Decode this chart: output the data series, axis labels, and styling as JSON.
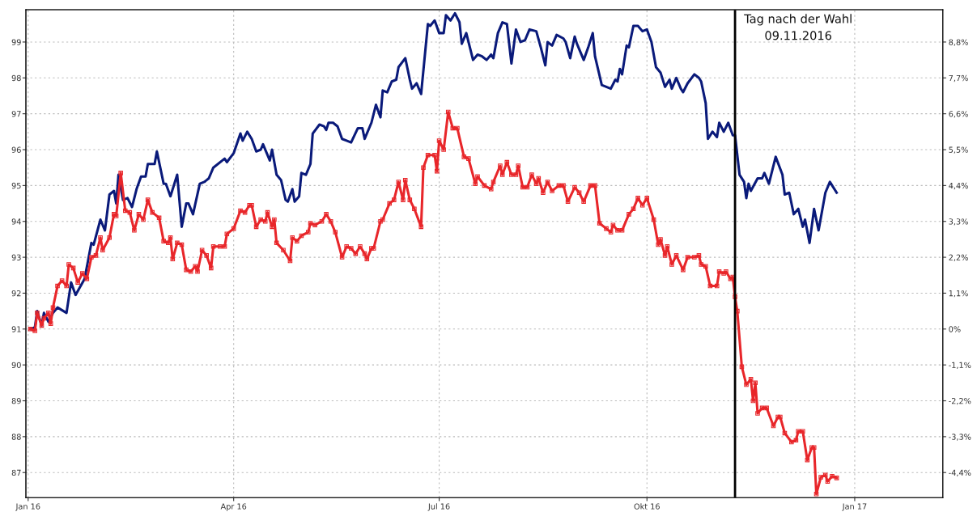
{
  "chart_data": {
    "type": "line",
    "xlim": [
      "2015-12-31",
      "2017-02-09"
    ],
    "xticks": [
      {
        "value": "2016-01-01",
        "label": "Jan 16"
      },
      {
        "value": "2016-04-01",
        "label": "Apr 16"
      },
      {
        "value": "2016-07-01",
        "label": "Jul 16"
      },
      {
        "value": "2016-10-01",
        "label": "Okt 16"
      },
      {
        "value": "2017-01-01",
        "label": "Jan 17"
      }
    ],
    "ylim": [
      86.3,
      99.9
    ],
    "yticks": [
      87,
      88,
      89,
      90,
      91,
      92,
      93,
      94,
      95,
      96,
      97,
      98,
      99
    ],
    "y2lim": [
      -5.17,
      9.79
    ],
    "y2ticks": [
      {
        "value": -4.4,
        "label": "-4,4%"
      },
      {
        "value": -3.3,
        "label": "-3,3%"
      },
      {
        "value": -2.2,
        "label": "-2,2%"
      },
      {
        "value": -1.1,
        "label": "-1,1%"
      },
      {
        "value": 0,
        "label": "0%"
      },
      {
        "value": 1.1,
        "label": "1,1%"
      },
      {
        "value": 2.2,
        "label": "2,2%"
      },
      {
        "value": 3.3,
        "label": "3,3%"
      },
      {
        "value": 4.4,
        "label": "4,4%"
      },
      {
        "value": 5.5,
        "label": "5,5%"
      },
      {
        "value": 6.6,
        "label": "6,6%"
      },
      {
        "value": 7.7,
        "label": "7,7%"
      },
      {
        "value": 8.8,
        "label": "8,8%"
      }
    ],
    "grid": true,
    "line_style": "solid",
    "ref_lines": [
      {
        "axis": "x",
        "value": "2016-11-09",
        "label": "Tag nach der Wahl\n09.11.2016",
        "color": "#000000"
      }
    ],
    "series": [
      {
        "color": "#0a1a7a",
        "marker": "none",
        "x": [
          "2016-01-02",
          "2016-01-04",
          "2016-01-05",
          "2016-01-07",
          "2016-01-08",
          "2016-01-10",
          "2016-01-12",
          "2016-01-14",
          "2016-01-18",
          "2016-01-20",
          "2016-01-22",
          "2016-01-26",
          "2016-01-29",
          "2016-01-30",
          "2016-02-02",
          "2016-02-04",
          "2016-02-06",
          "2016-02-08",
          "2016-02-09",
          "2016-02-10",
          "2016-02-12",
          "2016-02-14",
          "2016-02-16",
          "2016-02-18",
          "2016-02-20",
          "2016-02-22",
          "2016-02-23",
          "2016-02-26",
          "2016-02-27",
          "2016-03-01",
          "2016-03-02",
          "2016-03-04",
          "2016-03-07",
          "2016-03-09",
          "2016-03-11",
          "2016-03-12",
          "2016-03-14",
          "2016-03-17",
          "2016-03-19",
          "2016-03-21",
          "2016-03-23",
          "2016-03-28",
          "2016-03-29",
          "2016-04-01",
          "2016-04-04",
          "2016-04-05",
          "2016-04-07",
          "2016-04-09",
          "2016-04-11",
          "2016-04-13",
          "2016-04-14",
          "2016-04-17",
          "2016-04-18",
          "2016-04-20",
          "2016-04-22",
          "2016-04-24",
          "2016-04-25",
          "2016-04-27",
          "2016-04-28",
          "2016-04-30",
          "2016-05-01",
          "2016-05-03",
          "2016-05-05",
          "2016-05-06",
          "2016-05-09",
          "2016-05-11",
          "2016-05-12",
          "2016-05-13",
          "2016-05-15",
          "2016-05-17",
          "2016-05-19",
          "2016-05-21",
          "2016-05-23",
          "2016-05-26",
          "2016-05-28",
          "2016-05-29",
          "2016-06-01",
          "2016-06-03",
          "2016-06-05",
          "2016-06-06",
          "2016-06-08",
          "2016-06-10",
          "2016-06-12",
          "2016-06-13",
          "2016-06-16",
          "2016-06-18",
          "2016-06-19",
          "2016-06-21",
          "2016-06-23",
          "2016-06-26",
          "2016-06-27",
          "2016-06-29",
          "2016-07-01",
          "2016-07-03",
          "2016-07-04",
          "2016-07-06",
          "2016-07-08",
          "2016-07-10",
          "2016-07-11",
          "2016-07-13",
          "2016-07-16",
          "2016-07-18",
          "2016-07-20",
          "2016-07-22",
          "2016-07-24",
          "2016-07-25",
          "2016-07-27",
          "2016-07-29",
          "2016-07-31",
          "2016-08-02",
          "2016-08-04",
          "2016-08-06",
          "2016-08-08",
          "2016-08-10",
          "2016-08-13",
          "2016-08-15",
          "2016-08-17",
          "2016-08-18",
          "2016-08-20",
          "2016-08-22",
          "2016-08-25",
          "2016-08-26",
          "2016-08-28",
          "2016-08-30",
          "2016-08-31",
          "2016-09-03",
          "2016-09-05",
          "2016-09-07",
          "2016-09-08",
          "2016-09-11",
          "2016-09-13",
          "2016-09-15",
          "2016-09-17",
          "2016-09-18",
          "2016-09-19",
          "2016-09-20",
          "2016-09-22",
          "2016-09-23",
          "2016-09-25",
          "2016-09-27",
          "2016-09-29",
          "2016-10-01",
          "2016-10-03",
          "2016-10-05",
          "2016-10-07",
          "2016-10-09",
          "2016-10-11",
          "2016-10-12",
          "2016-10-14",
          "2016-10-16",
          "2016-10-17",
          "2016-10-19",
          "2016-10-22",
          "2016-10-24",
          "2016-10-25",
          "2016-10-27",
          "2016-10-28",
          "2016-10-30",
          "2016-11-01",
          "2016-11-02",
          "2016-11-04",
          "2016-11-06",
          "2016-11-08",
          "2016-11-09",
          "2016-11-11",
          "2016-11-13",
          "2016-11-14",
          "2016-11-15",
          "2016-11-16",
          "2016-11-19",
          "2016-11-21",
          "2016-11-22",
          "2016-11-24",
          "2016-11-27",
          "2016-11-30",
          "2016-12-01",
          "2016-12-03",
          "2016-12-05",
          "2016-12-07",
          "2016-12-09",
          "2016-12-10",
          "2016-12-12",
          "2016-12-14",
          "2016-12-16",
          "2016-12-19",
          "2016-12-21",
          "2016-12-24"
        ],
        "values": [
          91.0,
          91.05,
          91.5,
          91.1,
          91.45,
          91.2,
          91.45,
          91.6,
          91.45,
          92.3,
          91.95,
          92.4,
          93.4,
          93.35,
          94.05,
          93.75,
          94.75,
          94.85,
          94.5,
          95.3,
          94.6,
          94.65,
          94.4,
          94.9,
          95.25,
          95.25,
          95.6,
          95.6,
          95.95,
          95.05,
          95.05,
          94.7,
          95.3,
          93.85,
          94.5,
          94.5,
          94.2,
          95.05,
          95.1,
          95.2,
          95.5,
          95.75,
          95.65,
          95.9,
          96.45,
          96.25,
          96.5,
          96.3,
          95.95,
          96.0,
          96.15,
          95.7,
          96.0,
          95.3,
          95.15,
          94.6,
          94.55,
          94.9,
          94.55,
          94.7,
          95.35,
          95.3,
          95.6,
          96.45,
          96.7,
          96.65,
          96.55,
          96.75,
          96.75,
          96.65,
          96.3,
          96.25,
          96.2,
          96.6,
          96.6,
          96.3,
          96.75,
          97.25,
          96.9,
          97.65,
          97.6,
          97.9,
          97.95,
          98.3,
          98.55,
          97.95,
          97.7,
          97.85,
          97.55,
          99.5,
          99.45,
          99.6,
          99.25,
          99.25,
          99.75,
          99.6,
          99.8,
          99.55,
          98.95,
          99.25,
          98.5,
          98.65,
          98.6,
          98.5,
          98.65,
          98.55,
          99.25,
          99.55,
          99.5,
          98.4,
          99.35,
          99.0,
          99.05,
          99.35,
          99.3,
          98.85,
          98.35,
          99.0,
          98.9,
          99.2,
          99.1,
          99.0,
          98.55,
          99.15,
          98.95,
          98.5,
          98.85,
          99.25,
          98.6,
          97.8,
          97.75,
          97.7,
          97.95,
          97.9,
          98.25,
          98.1,
          98.9,
          98.85,
          99.45,
          99.45,
          99.3,
          99.35,
          99.0,
          98.3,
          98.15,
          97.75,
          97.95,
          97.7,
          98.0,
          97.7,
          97.6,
          97.85,
          98.1,
          98.0,
          97.9,
          97.3,
          96.3,
          96.5,
          96.35,
          96.75,
          96.5,
          96.75,
          96.4,
          96.4,
          95.3,
          95.1,
          94.65,
          95.05,
          94.85,
          95.2,
          95.2,
          95.35,
          95.05,
          95.8,
          95.3,
          94.75,
          94.8,
          94.2,
          94.35,
          93.85,
          94.05,
          93.4,
          94.35,
          93.75,
          94.8,
          95.1,
          94.8
        ]
      },
      {
        "color": "#e8262a",
        "marker": "square",
        "x": [
          "2016-01-02",
          "2016-01-04",
          "2016-01-05",
          "2016-01-07",
          "2016-01-08",
          "2016-01-10",
          "2016-01-11",
          "2016-01-12",
          "2016-01-14",
          "2016-01-16",
          "2016-01-18",
          "2016-01-19",
          "2016-01-21",
          "2016-01-23",
          "2016-01-25",
          "2016-01-27",
          "2016-01-29",
          "2016-01-31",
          "2016-02-02",
          "2016-02-03",
          "2016-02-06",
          "2016-02-08",
          "2016-02-09",
          "2016-02-11",
          "2016-02-13",
          "2016-02-15",
          "2016-02-17",
          "2016-02-19",
          "2016-02-21",
          "2016-02-23",
          "2016-02-25",
          "2016-02-28",
          "2016-03-01",
          "2016-03-03",
          "2016-03-04",
          "2016-03-05",
          "2016-03-07",
          "2016-03-09",
          "2016-03-11",
          "2016-03-13",
          "2016-03-15",
          "2016-03-16",
          "2016-03-18",
          "2016-03-20",
          "2016-03-22",
          "2016-03-23",
          "2016-03-26",
          "2016-03-28",
          "2016-03-29",
          "2016-04-01",
          "2016-04-04",
          "2016-04-06",
          "2016-04-08",
          "2016-04-09",
          "2016-04-11",
          "2016-04-13",
          "2016-04-15",
          "2016-04-16",
          "2016-04-18",
          "2016-04-19",
          "2016-04-20",
          "2016-04-23",
          "2016-04-26",
          "2016-04-27",
          "2016-04-29",
          "2016-05-01",
          "2016-05-04",
          "2016-05-05",
          "2016-05-07",
          "2016-05-10",
          "2016-05-12",
          "2016-05-14",
          "2016-05-16",
          "2016-05-19",
          "2016-05-21",
          "2016-05-23",
          "2016-05-25",
          "2016-05-27",
          "2016-05-29",
          "2016-05-30",
          "2016-06-01",
          "2016-06-02",
          "2016-06-05",
          "2016-06-06",
          "2016-06-09",
          "2016-06-11",
          "2016-06-13",
          "2016-06-15",
          "2016-06-16",
          "2016-06-18",
          "2016-06-20",
          "2016-06-23",
          "2016-06-24",
          "2016-06-26",
          "2016-06-29",
          "2016-06-30",
          "2016-07-01",
          "2016-07-03",
          "2016-07-05",
          "2016-07-07",
          "2016-07-09",
          "2016-07-12",
          "2016-07-14",
          "2016-07-17",
          "2016-07-18",
          "2016-07-21",
          "2016-07-24",
          "2016-07-25",
          "2016-07-28",
          "2016-07-29",
          "2016-07-31",
          "2016-08-02",
          "2016-08-04",
          "2016-08-05",
          "2016-08-07",
          "2016-08-09",
          "2016-08-11",
          "2016-08-13",
          "2016-08-14",
          "2016-08-16",
          "2016-08-18",
          "2016-08-20",
          "2016-08-23",
          "2016-08-25",
          "2016-08-27",
          "2016-08-30",
          "2016-09-01",
          "2016-09-03",
          "2016-09-06",
          "2016-09-08",
          "2016-09-10",
          "2016-09-13",
          "2016-09-15",
          "2016-09-16",
          "2016-09-18",
          "2016-09-20",
          "2016-09-23",
          "2016-09-25",
          "2016-09-27",
          "2016-09-29",
          "2016-10-01",
          "2016-10-04",
          "2016-10-06",
          "2016-10-07",
          "2016-10-09",
          "2016-10-10",
          "2016-10-12",
          "2016-10-14",
          "2016-10-17",
          "2016-10-19",
          "2016-10-22",
          "2016-10-24",
          "2016-10-25",
          "2016-10-27",
          "2016-10-29",
          "2016-11-01",
          "2016-11-02",
          "2016-11-04",
          "2016-11-05",
          "2016-11-07",
          "2016-11-08",
          "2016-11-09",
          "2016-11-10",
          "2016-11-12",
          "2016-11-14",
          "2016-11-16",
          "2016-11-17",
          "2016-11-18",
          "2016-11-19",
          "2016-11-21",
          "2016-11-23",
          "2016-11-26",
          "2016-11-28",
          "2016-11-29",
          "2016-12-01",
          "2016-12-04",
          "2016-12-06",
          "2016-12-07",
          "2016-12-09",
          "2016-12-11",
          "2016-12-13",
          "2016-12-14",
          "2016-12-15",
          "2016-12-17",
          "2016-12-19",
          "2016-12-20",
          "2016-12-22",
          "2016-12-24"
        ],
        "values": [
          91.0,
          90.95,
          91.45,
          91.1,
          91.3,
          91.45,
          91.15,
          91.6,
          92.2,
          92.35,
          92.2,
          92.8,
          92.7,
          92.3,
          92.55,
          92.4,
          93.0,
          93.05,
          93.55,
          93.2,
          93.55,
          94.2,
          94.15,
          95.35,
          94.3,
          94.25,
          93.75,
          94.2,
          94.05,
          94.6,
          94.25,
          94.1,
          93.45,
          93.4,
          93.55,
          92.95,
          93.4,
          93.35,
          92.65,
          92.6,
          92.75,
          92.6,
          93.2,
          93.05,
          92.7,
          93.3,
          93.3,
          93.3,
          93.65,
          93.8,
          94.3,
          94.25,
          94.45,
          94.45,
          93.85,
          94.05,
          94.0,
          94.25,
          93.85,
          94.05,
          93.4,
          93.2,
          92.9,
          93.55,
          93.45,
          93.6,
          93.7,
          93.95,
          93.9,
          94.0,
          94.2,
          94.0,
          93.7,
          93.0,
          93.3,
          93.25,
          93.1,
          93.3,
          93.1,
          92.95,
          93.25,
          93.25,
          94.0,
          94.05,
          94.5,
          94.6,
          95.1,
          94.6,
          95.15,
          94.6,
          94.35,
          93.85,
          95.5,
          95.85,
          95.85,
          95.4,
          96.25,
          96.0,
          97.05,
          96.6,
          96.6,
          95.8,
          95.75,
          95.05,
          95.25,
          95.0,
          94.9,
          95.1,
          95.55,
          95.3,
          95.65,
          95.3,
          95.3,
          95.55,
          94.95,
          94.95,
          95.3,
          95.05,
          95.2,
          94.8,
          95.1,
          94.85,
          95.0,
          95.0,
          94.55,
          94.95,
          94.8,
          94.55,
          95.0,
          95.0,
          93.95,
          93.8,
          93.7,
          93.9,
          93.75,
          93.75,
          94.2,
          94.35,
          94.65,
          94.45,
          94.65,
          94.05,
          93.35,
          93.5,
          93.05,
          93.3,
          92.8,
          93.05,
          92.65,
          93.0,
          93.0,
          93.05,
          92.8,
          92.75,
          92.2,
          92.2,
          92.6,
          92.55,
          92.6,
          92.4,
          92.45,
          91.9,
          91.5,
          89.95,
          89.45,
          89.6,
          89.0,
          89.5,
          88.65,
          88.8,
          88.8,
          88.3,
          88.55,
          88.55,
          88.1,
          87.85,
          87.9,
          88.15,
          88.15,
          87.35,
          87.7,
          87.7,
          86.4,
          86.87,
          86.93,
          86.75,
          86.9,
          86.85
        ]
      }
    ]
  }
}
